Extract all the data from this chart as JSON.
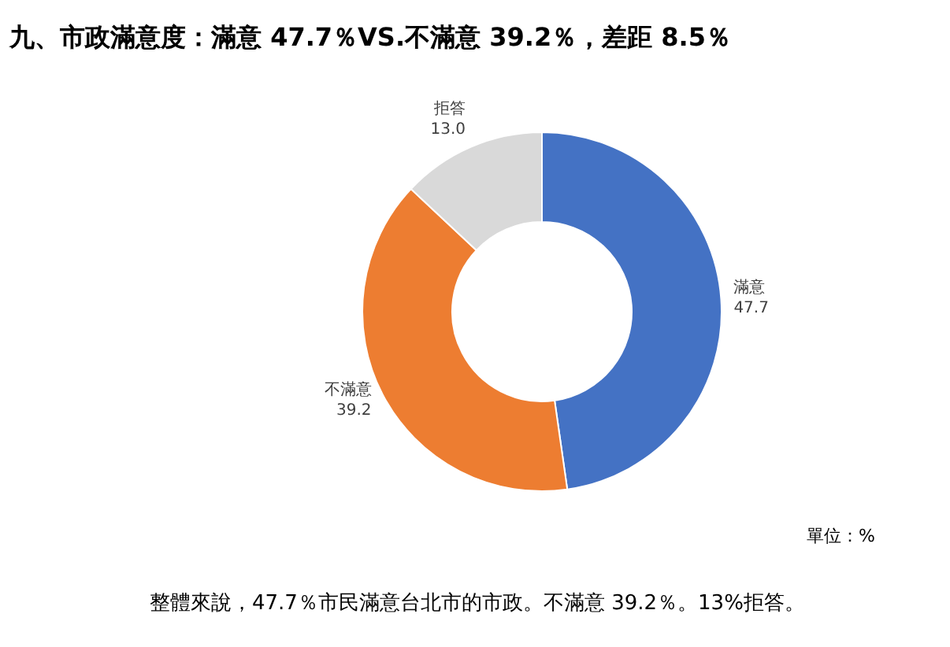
{
  "chart_data": {
    "type": "donut",
    "title": "九、市政滿意度：滿意 47.7％VS.不滿意 39.2％，差距 8.5％",
    "categories": [
      "滿意",
      "不滿意",
      "拒答"
    ],
    "values": [
      47.7,
      39.2,
      13.0
    ],
    "value_labels": [
      "47.7",
      "39.2",
      "13.0"
    ],
    "colors": [
      "#4472c4",
      "#ed7d31",
      "#d9d9d9"
    ],
    "annotations": [
      "單位：%",
      "整體來說，47.7％市民滿意台北市的市政。不滿意 39.2％。13%拒答。"
    ]
  }
}
